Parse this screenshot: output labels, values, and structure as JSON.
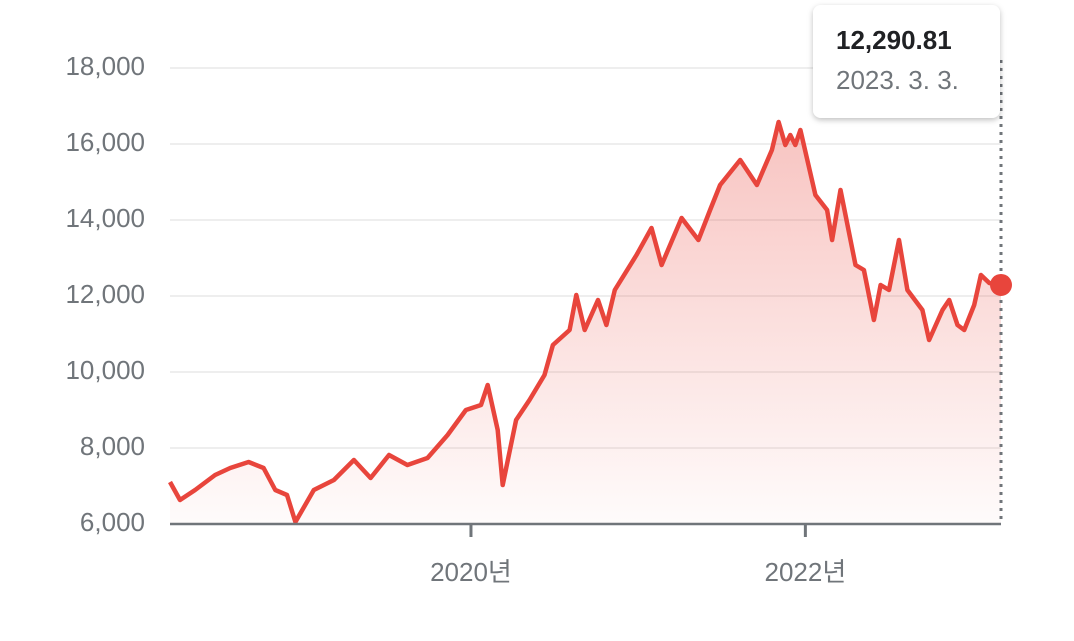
{
  "chart_data": {
    "type": "line",
    "x": [
      2018.2,
      2018.26,
      2018.35,
      2018.47,
      2018.56,
      2018.67,
      2018.76,
      2018.83,
      2018.9,
      2018.95,
      2019.06,
      2019.18,
      2019.3,
      2019.4,
      2019.51,
      2019.62,
      2019.74,
      2019.86,
      2019.97,
      2020.06,
      2020.1,
      2020.16,
      2020.19,
      2020.27,
      2020.35,
      2020.44,
      2020.49,
      2020.59,
      2020.63,
      2020.68,
      2020.76,
      2020.81,
      2020.86,
      2020.99,
      2021.08,
      2021.14,
      2021.26,
      2021.36,
      2021.43,
      2021.49,
      2021.61,
      2021.71,
      2021.8,
      2021.84,
      2021.88,
      2021.91,
      2021.94,
      2021.97,
      2022.06,
      2022.13,
      2022.16,
      2022.21,
      2022.3,
      2022.35,
      2022.41,
      2022.45,
      2022.5,
      2022.56,
      2022.61,
      2022.7,
      2022.74,
      2022.82,
      2022.86,
      2022.91,
      2022.95,
      2023.01,
      2023.05,
      2023.1,
      2023.17
    ],
    "series": [
      {
        "color": "#e8453c",
        "values": [
          7105,
          6632,
          6895,
          7289,
          7474,
          7632,
          7474,
          6895,
          6763,
          6053,
          6895,
          7158,
          7684,
          7211,
          7816,
          7553,
          7737,
          8342,
          9000,
          9132,
          9658,
          8474,
          7026,
          8737,
          9263,
          9921,
          10711,
          11105,
          12026,
          11105,
          11895,
          11237,
          12158,
          13079,
          13789,
          12816,
          14053,
          13474,
          14263,
          14921,
          15579,
          14921,
          15842,
          16579,
          15974,
          16237,
          15974,
          16368,
          14658,
          14263,
          13474,
          14789,
          12816,
          12684,
          11368,
          12289,
          12158,
          13474,
          12158,
          11632,
          10842,
          11632,
          11895,
          11237,
          11105,
          11763,
          12553,
          12342,
          12290.81
        ]
      }
    ],
    "xlim": [
      2018.2,
      2023.17
    ],
    "xticks": [
      {
        "value": 2020,
        "label": "2020년"
      },
      {
        "value": 2022,
        "label": "2022년"
      }
    ],
    "ylim": [
      6000,
      18000
    ],
    "yticks": [
      {
        "value": 6000,
        "label": "6,000"
      },
      {
        "value": 8000,
        "label": "8,000"
      },
      {
        "value": 10000,
        "label": "10,000"
      },
      {
        "value": 12000,
        "label": "12,000"
      },
      {
        "value": 14000,
        "label": "14,000"
      },
      {
        "value": 16000,
        "label": "16,000"
      },
      {
        "value": 18000,
        "label": "18,000"
      }
    ],
    "grid": true,
    "tooltip": {
      "title": "12,290.81",
      "subtitle": "2023. 3. 3."
    }
  }
}
